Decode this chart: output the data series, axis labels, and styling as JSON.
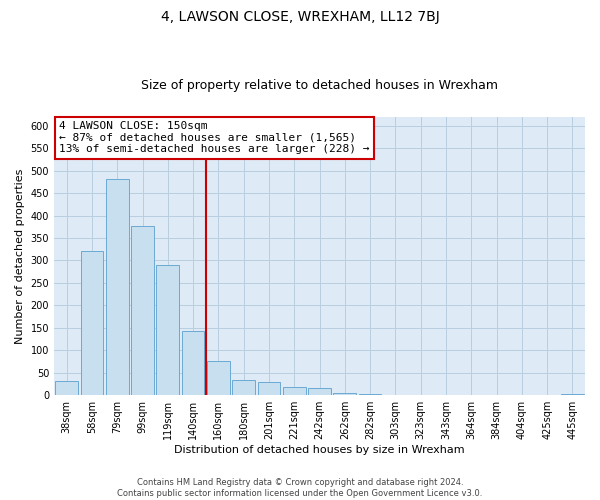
{
  "title": "4, LAWSON CLOSE, WREXHAM, LL12 7BJ",
  "subtitle": "Size of property relative to detached houses in Wrexham",
  "xlabel": "Distribution of detached houses by size in Wrexham",
  "ylabel": "Number of detached properties",
  "bar_labels": [
    "38sqm",
    "58sqm",
    "79sqm",
    "99sqm",
    "119sqm",
    "140sqm",
    "160sqm",
    "180sqm",
    "201sqm",
    "221sqm",
    "242sqm",
    "262sqm",
    "282sqm",
    "303sqm",
    "323sqm",
    "343sqm",
    "364sqm",
    "384sqm",
    "404sqm",
    "425sqm",
    "445sqm"
  ],
  "bar_values": [
    32,
    322,
    481,
    376,
    291,
    144,
    76,
    34,
    30,
    19,
    15,
    5,
    2,
    1,
    1,
    0,
    0,
    0,
    0,
    0,
    2
  ],
  "bar_color": "#c8dff0",
  "bar_edge_color": "#6aaad4",
  "vline_color": "#cc0000",
  "annotation_title": "4 LAWSON CLOSE: 150sqm",
  "annotation_line1": "← 87% of detached houses are smaller (1,565)",
  "annotation_line2": "13% of semi-detached houses are larger (228) →",
  "annotation_box_color": "#ffffff",
  "annotation_box_edge": "#cc0000",
  "ylim": [
    0,
    620
  ],
  "yticks": [
    0,
    50,
    100,
    150,
    200,
    250,
    300,
    350,
    400,
    450,
    500,
    550,
    600
  ],
  "footer1": "Contains HM Land Registry data © Crown copyright and database right 2024.",
  "footer2": "Contains public sector information licensed under the Open Government Licence v3.0.",
  "bg_color": "#ffffff",
  "plot_bg_color": "#deeaf5",
  "grid_color": "#b8cfe0",
  "title_fontsize": 10,
  "subtitle_fontsize": 9,
  "axis_label_fontsize": 8,
  "tick_fontsize": 7,
  "footer_fontsize": 6,
  "annotation_fontsize": 8
}
